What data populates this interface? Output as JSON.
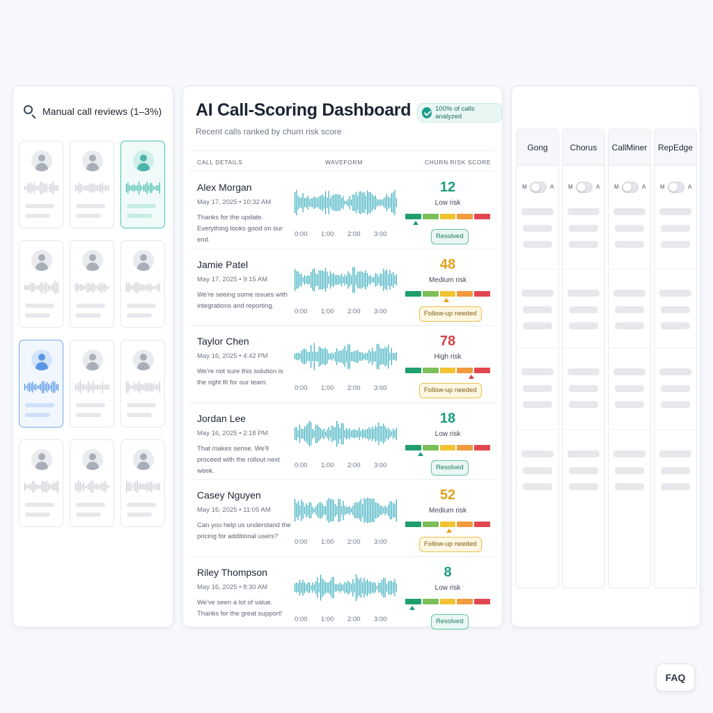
{
  "left_panel": {
    "title": "Manual call reviews (1–3%)",
    "icon": "search-icon",
    "cards": [
      {
        "state": "default"
      },
      {
        "state": "default"
      },
      {
        "state": "selected-teal"
      },
      {
        "state": "default"
      },
      {
        "state": "default"
      },
      {
        "state": "default"
      },
      {
        "state": "selected-blue"
      },
      {
        "state": "default"
      },
      {
        "state": "default"
      },
      {
        "state": "default"
      },
      {
        "state": "default"
      },
      {
        "state": "default"
      }
    ]
  },
  "dashboard": {
    "title": "AI Call-Scoring Dashboard",
    "subtitle": "Recent calls ranked by churn risk score",
    "badge": "100% of calls analyzed",
    "columns": {
      "details": "CALL DETAILS",
      "waveform": "WAVEFORM",
      "score": "CHURN RISK SCORE"
    },
    "time_labels": [
      "0:00",
      "1:00",
      "2:00",
      "3:00"
    ],
    "calls": [
      {
        "name": "Alex Morgan",
        "date": "May 17, 2025  •  10:32 AM",
        "quote": "Thanks for the update. Everything looks good on our end.",
        "score": "12",
        "level": "Low risk",
        "status": "Resolved",
        "status_type": "resolved",
        "score_value": 12
      },
      {
        "name": "Jamie Patel",
        "date": "May 17, 2025  •  9:15 AM",
        "quote": "We're seeing some issues with integrations and reporting.",
        "score": "48",
        "level": "Medium risk",
        "status": "Follow-up needed",
        "status_type": "followup",
        "score_value": 48
      },
      {
        "name": "Taylor Chen",
        "date": "May 16, 2025  •  4:42 PM",
        "quote": "We're not sure this solution is the right fit for our team.",
        "score": "78",
        "level": "High risk",
        "status": "Follow-up needed",
        "status_type": "followup",
        "score_value": 78
      },
      {
        "name": "Jordan Lee",
        "date": "May 16, 2025  •  2:18 PM",
        "quote": "That makes sense. We'll proceed with the rollout next week.",
        "score": "18",
        "level": "Low risk",
        "status": "Resolved",
        "status_type": "resolved",
        "score_value": 18
      },
      {
        "name": "Casey Nguyen",
        "date": "May 16, 2025  •  11:05 AM",
        "quote": "Can you help us understand the pricing for additional users?",
        "score": "52",
        "level": "Medium risk",
        "status": "Follow-up needed",
        "status_type": "followup",
        "score_value": 52
      },
      {
        "name": "Riley Thompson",
        "date": "May 16, 2025  •  8:30 AM",
        "quote": "We've seen a lot of value. Thanks for the great support!",
        "score": "8",
        "level": "Low risk",
        "status": "Resolved",
        "status_type": "resolved",
        "score_value": 8
      }
    ]
  },
  "vendors": {
    "toggle_left": "M",
    "toggle_right": "A",
    "items": [
      {
        "name": "Gong"
      },
      {
        "name": "Chorus"
      },
      {
        "name": "CallMiner"
      },
      {
        "name": "RepEdge"
      }
    ]
  },
  "faq": {
    "label": "FAQ"
  },
  "colors": {
    "low": "#1a9c7d",
    "medium": "#e0a21b",
    "high": "#d9414a",
    "risk_scale": [
      "#1f9e6e",
      "#7cbf58",
      "#f1c232",
      "#f19a3e",
      "#e2474f"
    ],
    "wave": "#2aa7b8",
    "wave_gray": "#c5c9d1",
    "wave_teal": "#2fb3a3",
    "wave_blue": "#3b86e0"
  }
}
